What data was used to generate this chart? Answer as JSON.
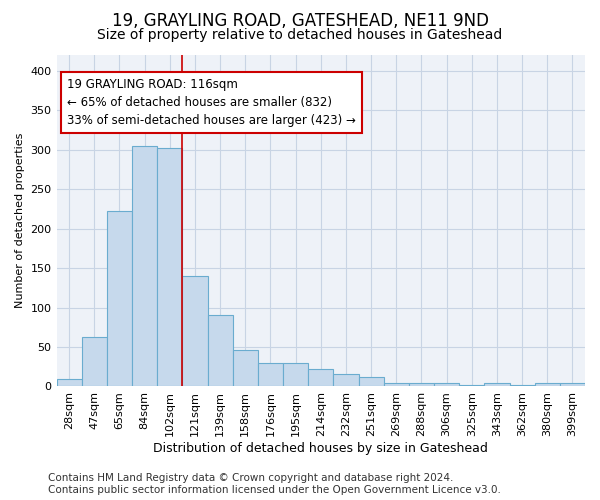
{
  "title1": "19, GRAYLING ROAD, GATESHEAD, NE11 9ND",
  "title2": "Size of property relative to detached houses in Gateshead",
  "xlabel": "Distribution of detached houses by size in Gateshead",
  "ylabel": "Number of detached properties",
  "footnote": "Contains HM Land Registry data © Crown copyright and database right 2024.\nContains public sector information licensed under the Open Government Licence v3.0.",
  "categories": [
    "28sqm",
    "47sqm",
    "65sqm",
    "84sqm",
    "102sqm",
    "121sqm",
    "139sqm",
    "158sqm",
    "176sqm",
    "195sqm",
    "214sqm",
    "232sqm",
    "251sqm",
    "269sqm",
    "288sqm",
    "306sqm",
    "325sqm",
    "343sqm",
    "362sqm",
    "380sqm",
    "399sqm"
  ],
  "values": [
    9,
    63,
    222,
    305,
    302,
    140,
    90,
    46,
    30,
    30,
    22,
    16,
    12,
    4,
    5,
    4,
    2,
    4,
    2,
    4,
    4
  ],
  "bar_color": "#c6d9ec",
  "bar_edge_color": "#6aaccf",
  "property_line_x": 4.5,
  "annotation_line1": "19 GRAYLING ROAD: 116sqm",
  "annotation_line2": "← 65% of detached houses are smaller (832)",
  "annotation_line3": "33% of semi-detached houses are larger (423) →",
  "annotation_box_color": "white",
  "annotation_box_edge_color": "#cc0000",
  "vline_color": "#cc0000",
  "ylim": [
    0,
    420
  ],
  "yticks": [
    0,
    50,
    100,
    150,
    200,
    250,
    300,
    350,
    400
  ],
  "grid_color": "#c8d4e4",
  "background_color": "#eef2f8",
  "title1_fontsize": 12,
  "title2_fontsize": 10,
  "xlabel_fontsize": 9,
  "ylabel_fontsize": 8,
  "tick_fontsize": 8,
  "annotation_fontsize": 8.5,
  "footnote_fontsize": 7.5
}
